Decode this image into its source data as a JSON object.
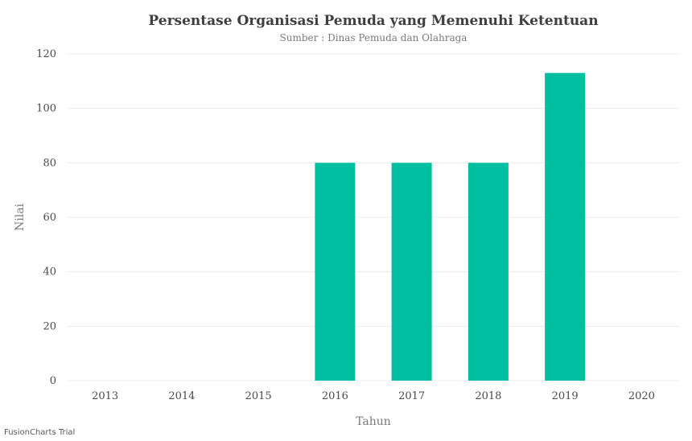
{
  "chart_data": {
    "type": "bar",
    "title": "Persentase Organisasi Pemuda yang Memenuhi Ketentuan",
    "subtitle": "Sumber : Dinas Pemuda dan Olahraga",
    "xlabel": "Tahun",
    "ylabel": "Nilai",
    "categories": [
      "2013",
      "2014",
      "2015",
      "2016",
      "2017",
      "2018",
      "2019",
      "2020"
    ],
    "values": [
      0,
      0,
      0,
      80,
      80,
      80,
      113,
      0
    ],
    "ylim": [
      0,
      120
    ],
    "yticks": [
      0,
      20,
      40,
      60,
      80,
      100,
      120
    ],
    "grid": true,
    "bar_color": "#00bfa0"
  },
  "watermark": "FusionCharts Trial"
}
